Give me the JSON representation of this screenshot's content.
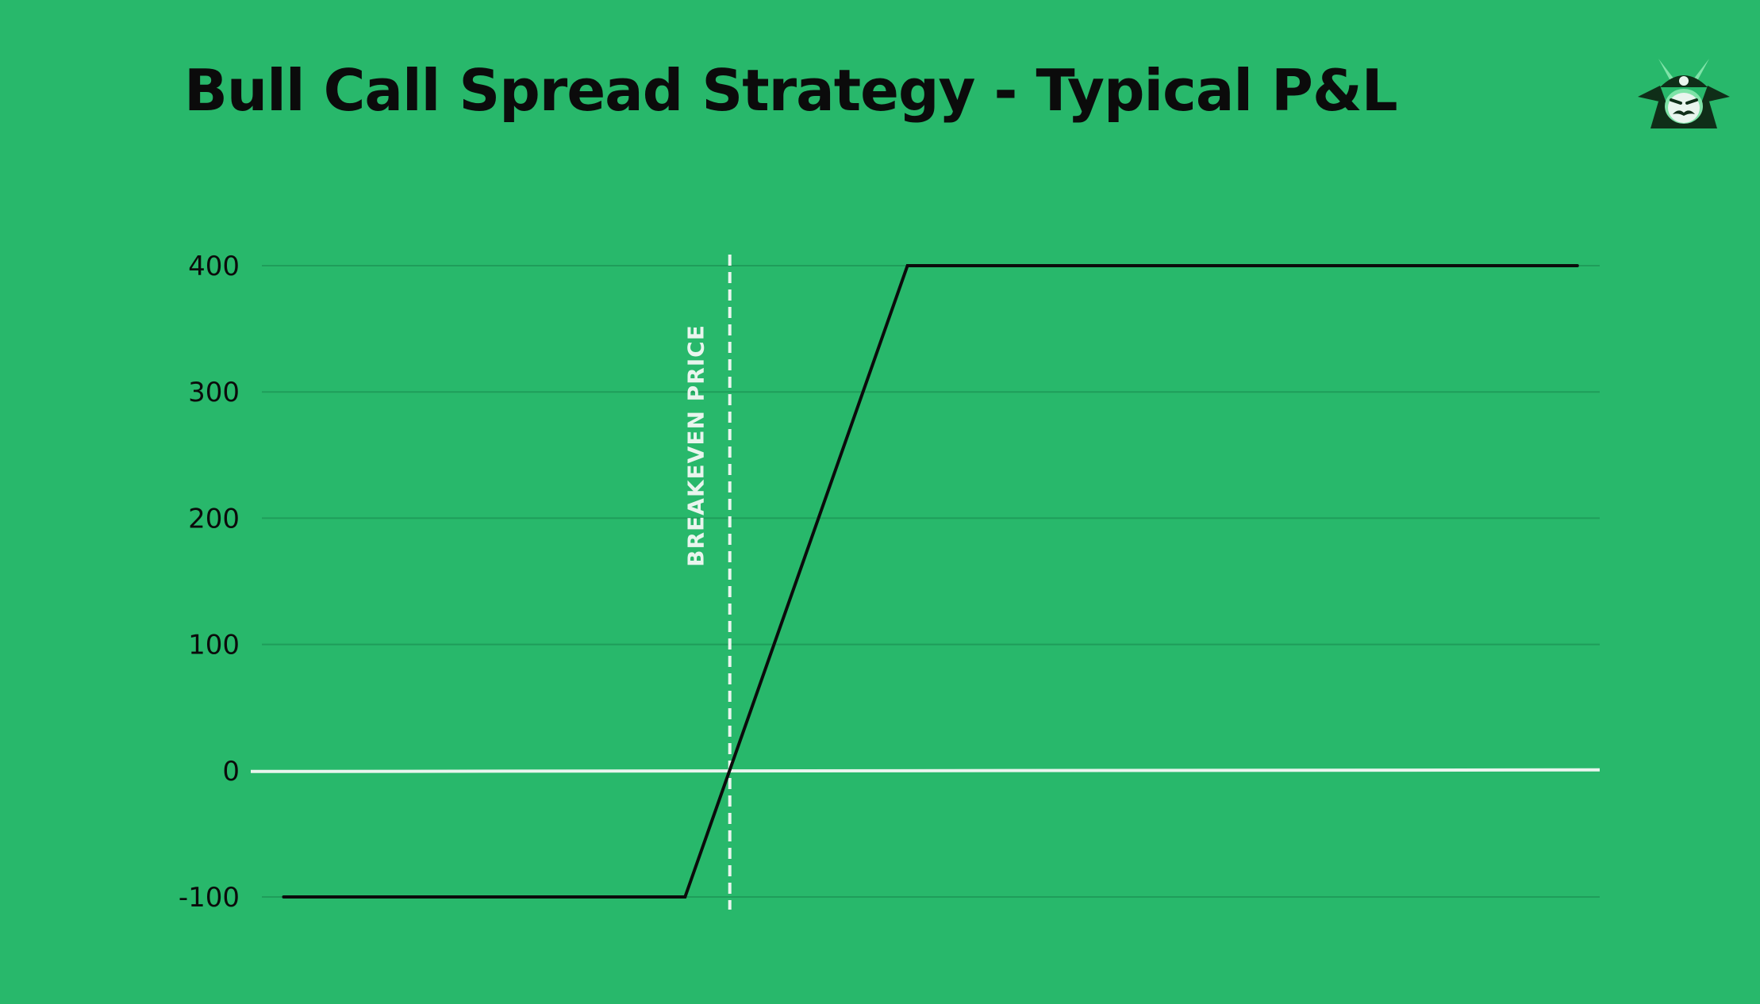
{
  "header": {
    "title": "Bull Call Spread Strategy - Typical P&L"
  },
  "brand": {
    "logo_icon": "samurai-helmet-icon"
  },
  "colors": {
    "background": "#28b86b",
    "payoff_line": "#0b0b0b",
    "zero_line": "#e9f5ee",
    "gridline": "#1f9d5a",
    "breakeven_line": "#e9f5ee"
  },
  "chart_data": {
    "type": "line",
    "title": "Bull Call Spread Strategy - Typical P&L",
    "xlabel": "",
    "ylabel": "",
    "ylim": [
      -100,
      400
    ],
    "yticks": [
      400,
      300,
      200,
      100,
      0,
      -100
    ],
    "ytick_labels": [
      "400",
      "300",
      "200",
      "100",
      "0",
      "-100"
    ],
    "grid": true,
    "series": [
      {
        "points": [
          [
            0,
            -100
          ],
          [
            30.5,
            -100
          ],
          [
            47.4,
            400
          ],
          [
            98.3,
            400
          ]
        ]
      }
    ],
    "zero_line": {
      "y": 0
    },
    "breakeven": {
      "x": 33.9,
      "label": "BREAKEVEN PRICE"
    },
    "xlim": [
      -2.5,
      100
    ]
  }
}
